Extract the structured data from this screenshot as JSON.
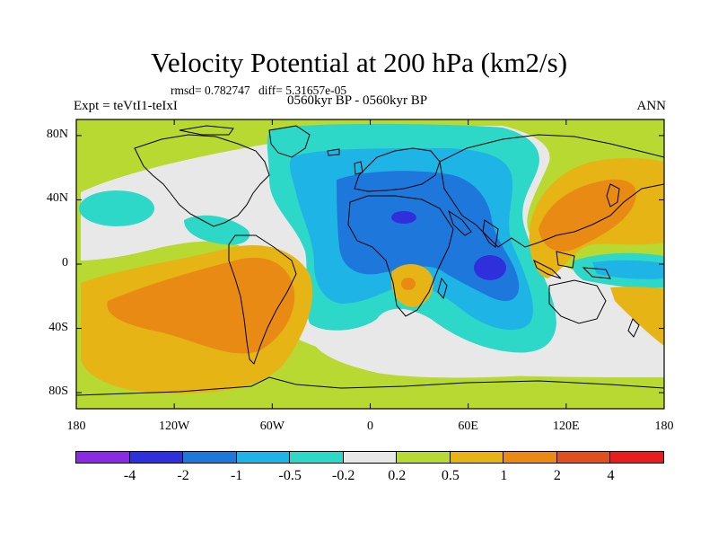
{
  "title": "Velocity Potential at 200 hPa (km2/s)",
  "rmsd_text": "rmsd= 0.782747",
  "diff_text": "diff= 5.31657e-05",
  "expt_label": "Expt = teVtI1-teIxI",
  "period_label": "0560kyr BP - 0560kyr BP",
  "season_label": "ANN",
  "map": {
    "projection": "cylindrical equidistant",
    "lon_range": [
      -180,
      180
    ],
    "lat_range": [
      -90,
      90
    ],
    "y_ticks": [
      {
        "label": "80N",
        "lat": 80
      },
      {
        "label": "40N",
        "lat": 40
      },
      {
        "label": "0",
        "lat": 0
      },
      {
        "label": "40S",
        "lat": -40
      },
      {
        "label": "80S",
        "lat": -80
      }
    ],
    "x_ticks": [
      {
        "label": "180",
        "lon": -180
      },
      {
        "label": "120W",
        "lon": -120
      },
      {
        "label": "60W",
        "lon": -60
      },
      {
        "label": "0",
        "lon": 0
      },
      {
        "label": "60E",
        "lon": 60
      },
      {
        "label": "120E",
        "lon": 120
      },
      {
        "label": "180",
        "lon": 180
      }
    ]
  },
  "colorbar": {
    "colors": [
      "#8a2be2",
      "#2f2fdc",
      "#1e78dc",
      "#1eb4e6",
      "#2ed8c8",
      "#e8e8e8",
      "#b8d832",
      "#e6b414",
      "#e88a14",
      "#e0501e",
      "#e61e1e"
    ],
    "labels": [
      "-4",
      "-2",
      "-1",
      "-0.5",
      "-0.2",
      "0.2",
      "0.5",
      "1",
      "2",
      "4"
    ]
  },
  "chart_data": {
    "type": "contour-map",
    "variable": "Velocity Potential at 200 hPa",
    "units": "km2/s",
    "levels": [
      -4,
      -2,
      -1,
      -0.5,
      -0.2,
      0.2,
      0.5,
      1,
      2,
      4
    ],
    "features": [
      {
        "name": "Africa / Indian Ocean / Eurasia negative region",
        "min_level": -2
      },
      {
        "name": "Indian Ocean minimum near 60E, 0",
        "min_level": -2
      },
      {
        "name": "North Africa minimum near 15E, 25N",
        "min_level": -2
      },
      {
        "name": "SE Pacific positive region",
        "max_level": 2
      },
      {
        "name": "NW Pacific positive region",
        "max_level": 2
      },
      {
        "name": "Southern Africa positive center",
        "max_level": 2
      }
    ]
  }
}
